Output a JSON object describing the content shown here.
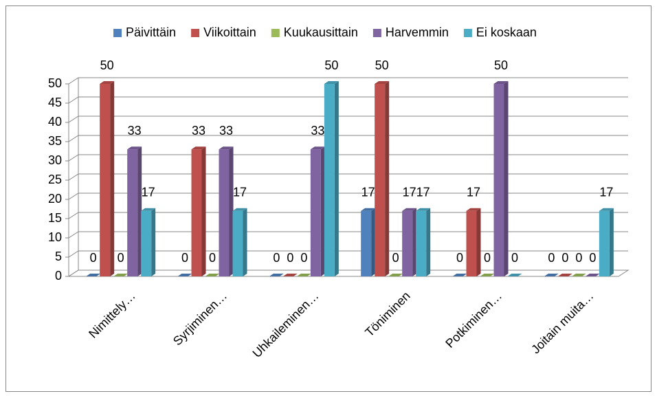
{
  "chart_data": {
    "type": "bar3d",
    "categories": [
      "Nimittely…",
      "Syrjiminen…",
      "Uhkaileminen…",
      "Töniminen",
      "Potkiminen…",
      "Joitain muita…"
    ],
    "series": [
      {
        "name": "Päivittäin",
        "color": "#4f81bd",
        "values": [
          0,
          0,
          0,
          17,
          0,
          0
        ]
      },
      {
        "name": "Viikoittain",
        "color": "#c0504d",
        "values": [
          50,
          33,
          0,
          50,
          17,
          0
        ]
      },
      {
        "name": "Kuukausittain",
        "color": "#9bbb59",
        "values": [
          0,
          0,
          0,
          0,
          0,
          0
        ]
      },
      {
        "name": "Harvemmin",
        "color": "#8064a2",
        "values": [
          33,
          33,
          33,
          17,
          50,
          0
        ]
      },
      {
        "name": "Ei koskaan",
        "color": "#4bacc6",
        "values": [
          17,
          17,
          50,
          17,
          0,
          17
        ]
      }
    ],
    "ylim": [
      0,
      50
    ],
    "yticks": [
      0,
      5,
      10,
      15,
      20,
      25,
      30,
      35,
      40,
      45,
      50
    ],
    "grid": true,
    "legend": "top"
  }
}
